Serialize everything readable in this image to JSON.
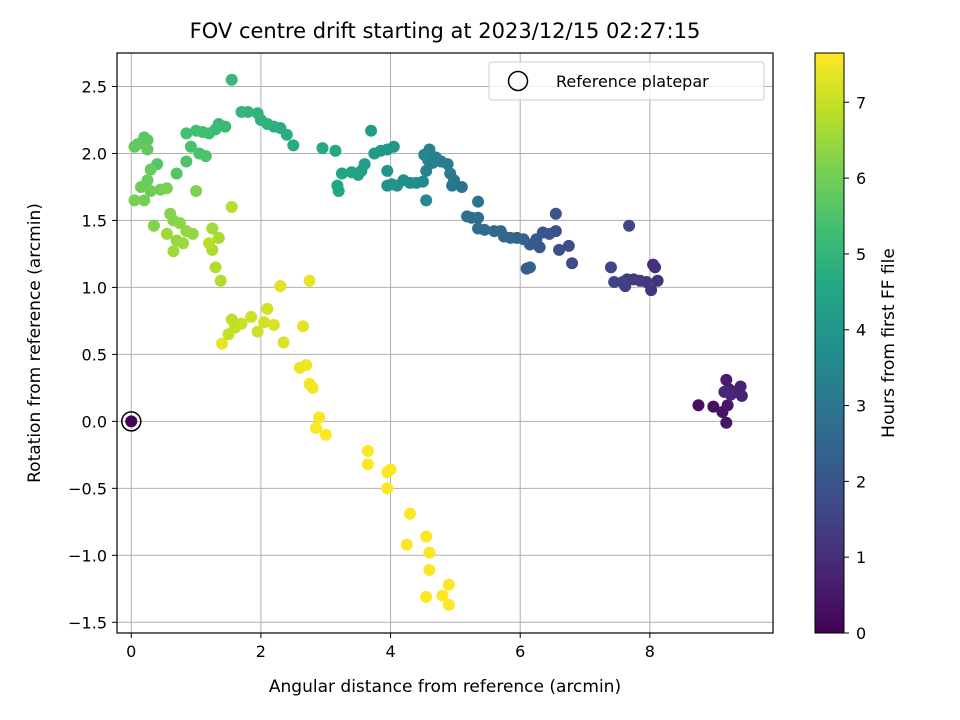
{
  "chart_data": {
    "type": "scatter",
    "title": "FOV centre drift starting at 2023/12/15 02:27:15",
    "xlabel": "Angular distance from reference (arcmin)",
    "ylabel": "Rotation from reference (arcmin)",
    "xlim": [
      -0.22,
      9.9
    ],
    "ylim": [
      -1.58,
      2.75
    ],
    "xticks": [
      0,
      2,
      4,
      6,
      8
    ],
    "xtick_labels": [
      "0",
      "2",
      "4",
      "6",
      "8"
    ],
    "yticks": [
      -1.5,
      -1.0,
      -0.5,
      0.0,
      0.5,
      1.0,
      1.5,
      2.0,
      2.5
    ],
    "ytick_labels": [
      "−1.5",
      "−1.0",
      "−0.5",
      "0.0",
      "0.5",
      "1.0",
      "1.5",
      "2.0",
      "2.5"
    ],
    "grid": true,
    "legend": {
      "position": "top-right",
      "entries": [
        "Reference platepar"
      ]
    },
    "colorbar": {
      "label": "Hours from first FF file",
      "colormap": "viridis",
      "range": [
        0,
        7.65
      ],
      "ticks": [
        0,
        1,
        2,
        3,
        4,
        5,
        6,
        7
      ],
      "tick_labels": [
        "0",
        "1",
        "2",
        "3",
        "4",
        "5",
        "6",
        "7"
      ]
    },
    "reference_point": {
      "x": 0.0,
      "y": 0.0
    },
    "points": [
      {
        "x": 0.0,
        "y": 0.0,
        "c": 0.0
      },
      {
        "x": 8.75,
        "y": 0.12,
        "c": 0.3
      },
      {
        "x": 8.98,
        "y": 0.11,
        "c": 0.35
      },
      {
        "x": 9.12,
        "y": 0.07,
        "c": 0.4
      },
      {
        "x": 9.18,
        "y": -0.01,
        "c": 0.45
      },
      {
        "x": 9.2,
        "y": 0.12,
        "c": 0.5
      },
      {
        "x": 9.22,
        "y": 0.24,
        "c": 0.55
      },
      {
        "x": 9.18,
        "y": 0.31,
        "c": 0.6
      },
      {
        "x": 9.3,
        "y": 0.22,
        "c": 0.65
      },
      {
        "x": 9.4,
        "y": 0.26,
        "c": 0.7
      },
      {
        "x": 9.42,
        "y": 0.19,
        "c": 0.75
      },
      {
        "x": 9.25,
        "y": 0.2,
        "c": 0.8
      },
      {
        "x": 9.15,
        "y": 0.22,
        "c": 0.85
      },
      {
        "x": 8.05,
        "y": 1.17,
        "c": 1.0
      },
      {
        "x": 8.08,
        "y": 1.15,
        "c": 1.05
      },
      {
        "x": 8.12,
        "y": 1.05,
        "c": 1.1
      },
      {
        "x": 8.02,
        "y": 0.98,
        "c": 1.15
      },
      {
        "x": 7.95,
        "y": 1.04,
        "c": 1.2
      },
      {
        "x": 7.85,
        "y": 1.05,
        "c": 1.25
      },
      {
        "x": 7.75,
        "y": 1.06,
        "c": 1.3
      },
      {
        "x": 7.65,
        "y": 1.06,
        "c": 1.35
      },
      {
        "x": 7.62,
        "y": 1.01,
        "c": 1.4
      },
      {
        "x": 7.58,
        "y": 1.04,
        "c": 1.45
      },
      {
        "x": 7.45,
        "y": 1.04,
        "c": 1.5
      },
      {
        "x": 7.4,
        "y": 1.15,
        "c": 1.55
      },
      {
        "x": 7.68,
        "y": 1.46,
        "c": 1.6
      },
      {
        "x": 6.8,
        "y": 1.18,
        "c": 1.75
      },
      {
        "x": 6.75,
        "y": 1.31,
        "c": 1.8
      },
      {
        "x": 6.6,
        "y": 1.28,
        "c": 1.85
      },
      {
        "x": 6.55,
        "y": 1.42,
        "c": 1.9
      },
      {
        "x": 6.55,
        "y": 1.55,
        "c": 1.95
      },
      {
        "x": 6.45,
        "y": 1.4,
        "c": 2.0
      },
      {
        "x": 6.35,
        "y": 1.41,
        "c": 2.05
      },
      {
        "x": 6.3,
        "y": 1.3,
        "c": 2.1
      },
      {
        "x": 6.25,
        "y": 1.36,
        "c": 2.15
      },
      {
        "x": 6.15,
        "y": 1.32,
        "c": 2.2
      },
      {
        "x": 6.1,
        "y": 1.14,
        "c": 2.25
      },
      {
        "x": 6.15,
        "y": 1.15,
        "c": 2.3
      },
      {
        "x": 6.05,
        "y": 1.36,
        "c": 2.35
      },
      {
        "x": 5.95,
        "y": 1.37,
        "c": 2.4
      },
      {
        "x": 5.85,
        "y": 1.37,
        "c": 2.45
      },
      {
        "x": 5.75,
        "y": 1.38,
        "c": 2.5
      },
      {
        "x": 5.7,
        "y": 1.42,
        "c": 2.55
      },
      {
        "x": 5.6,
        "y": 1.42,
        "c": 2.6
      },
      {
        "x": 5.45,
        "y": 1.43,
        "c": 2.65
      },
      {
        "x": 5.35,
        "y": 1.44,
        "c": 2.7
      },
      {
        "x": 5.35,
        "y": 1.52,
        "c": 2.75
      },
      {
        "x": 5.25,
        "y": 1.52,
        "c": 2.8
      },
      {
        "x": 5.18,
        "y": 1.53,
        "c": 2.85
      },
      {
        "x": 5.35,
        "y": 1.64,
        "c": 2.9
      },
      {
        "x": 5.1,
        "y": 1.75,
        "c": 2.95
      },
      {
        "x": 4.95,
        "y": 1.76,
        "c": 3.0
      },
      {
        "x": 4.98,
        "y": 1.8,
        "c": 3.05
      },
      {
        "x": 4.92,
        "y": 1.85,
        "c": 3.1
      },
      {
        "x": 4.88,
        "y": 1.92,
        "c": 3.15
      },
      {
        "x": 4.78,
        "y": 1.94,
        "c": 3.2
      },
      {
        "x": 4.7,
        "y": 1.97,
        "c": 3.25
      },
      {
        "x": 4.65,
        "y": 1.93,
        "c": 3.3
      },
      {
        "x": 4.58,
        "y": 1.95,
        "c": 3.35
      },
      {
        "x": 4.55,
        "y": 1.87,
        "c": 3.4
      },
      {
        "x": 4.6,
        "y": 2.03,
        "c": 3.45
      },
      {
        "x": 4.52,
        "y": 1.99,
        "c": 3.5
      },
      {
        "x": 4.5,
        "y": 1.79,
        "c": 3.55
      },
      {
        "x": 4.55,
        "y": 1.65,
        "c": 3.6
      },
      {
        "x": 4.4,
        "y": 1.78,
        "c": 3.65
      },
      {
        "x": 4.3,
        "y": 1.78,
        "c": 3.7
      },
      {
        "x": 4.2,
        "y": 1.8,
        "c": 3.75
      },
      {
        "x": 4.1,
        "y": 1.76,
        "c": 3.8
      },
      {
        "x": 4.02,
        "y": 1.77,
        "c": 3.85
      },
      {
        "x": 3.95,
        "y": 1.76,
        "c": 3.9
      },
      {
        "x": 3.95,
        "y": 1.87,
        "c": 3.95
      },
      {
        "x": 4.05,
        "y": 2.05,
        "c": 4.0
      },
      {
        "x": 3.95,
        "y": 2.03,
        "c": 4.05
      },
      {
        "x": 3.85,
        "y": 2.02,
        "c": 4.1
      },
      {
        "x": 3.75,
        "y": 2.0,
        "c": 4.15
      },
      {
        "x": 3.7,
        "y": 2.17,
        "c": 4.2
      },
      {
        "x": 3.6,
        "y": 1.92,
        "c": 4.25
      },
      {
        "x": 3.55,
        "y": 1.87,
        "c": 4.3
      },
      {
        "x": 3.5,
        "y": 1.84,
        "c": 4.35
      },
      {
        "x": 3.4,
        "y": 1.86,
        "c": 4.4
      },
      {
        "x": 3.25,
        "y": 1.85,
        "c": 4.45
      },
      {
        "x": 3.18,
        "y": 1.76,
        "c": 4.5
      },
      {
        "x": 3.2,
        "y": 1.72,
        "c": 4.55
      },
      {
        "x": 3.15,
        "y": 2.02,
        "c": 4.6
      },
      {
        "x": 2.95,
        "y": 2.04,
        "c": 4.65
      },
      {
        "x": 2.5,
        "y": 2.06,
        "c": 4.72
      },
      {
        "x": 2.4,
        "y": 2.14,
        "c": 4.76
      },
      {
        "x": 2.3,
        "y": 2.19,
        "c": 4.8
      },
      {
        "x": 2.2,
        "y": 2.2,
        "c": 4.84
      },
      {
        "x": 2.1,
        "y": 2.22,
        "c": 4.88
      },
      {
        "x": 2.0,
        "y": 2.25,
        "c": 4.92
      },
      {
        "x": 1.95,
        "y": 2.3,
        "c": 4.96
      },
      {
        "x": 1.8,
        "y": 2.31,
        "c": 5.0
      },
      {
        "x": 1.7,
        "y": 2.31,
        "c": 5.04
      },
      {
        "x": 1.55,
        "y": 2.55,
        "c": 5.08
      },
      {
        "x": 1.45,
        "y": 2.2,
        "c": 5.12
      },
      {
        "x": 1.35,
        "y": 2.22,
        "c": 5.16
      },
      {
        "x": 1.3,
        "y": 2.18,
        "c": 5.2
      },
      {
        "x": 1.2,
        "y": 2.15,
        "c": 5.24
      },
      {
        "x": 1.1,
        "y": 2.16,
        "c": 5.28
      },
      {
        "x": 1.0,
        "y": 2.17,
        "c": 5.32
      },
      {
        "x": 0.85,
        "y": 2.15,
        "c": 5.36
      },
      {
        "x": 0.92,
        "y": 2.05,
        "c": 5.4
      },
      {
        "x": 1.05,
        "y": 2.0,
        "c": 5.44
      },
      {
        "x": 1.15,
        "y": 1.98,
        "c": 5.48
      },
      {
        "x": 0.85,
        "y": 1.94,
        "c": 5.52
      },
      {
        "x": 0.7,
        "y": 1.85,
        "c": 5.56
      },
      {
        "x": 0.4,
        "y": 1.92,
        "c": 5.6
      },
      {
        "x": 0.25,
        "y": 2.1,
        "c": 5.64
      },
      {
        "x": 0.2,
        "y": 2.12,
        "c": 5.68
      },
      {
        "x": 0.1,
        "y": 2.07,
        "c": 5.72
      },
      {
        "x": 0.05,
        "y": 2.05,
        "c": 5.76
      },
      {
        "x": 0.25,
        "y": 2.03,
        "c": 5.8
      },
      {
        "x": 0.3,
        "y": 1.88,
        "c": 5.84
      },
      {
        "x": 0.25,
        "y": 1.8,
        "c": 5.88
      },
      {
        "x": 0.15,
        "y": 1.75,
        "c": 5.92
      },
      {
        "x": 0.3,
        "y": 1.72,
        "c": 5.96
      },
      {
        "x": 0.45,
        "y": 1.73,
        "c": 6.0
      },
      {
        "x": 0.2,
        "y": 1.65,
        "c": 6.04
      },
      {
        "x": 0.05,
        "y": 1.65,
        "c": 6.08
      },
      {
        "x": 0.55,
        "y": 1.74,
        "c": 6.12
      },
      {
        "x": 1.0,
        "y": 1.72,
        "c": 6.16
      },
      {
        "x": 0.35,
        "y": 1.46,
        "c": 6.2
      },
      {
        "x": 0.6,
        "y": 1.55,
        "c": 6.24
      },
      {
        "x": 0.65,
        "y": 1.5,
        "c": 6.28
      },
      {
        "x": 0.75,
        "y": 1.48,
        "c": 6.32
      },
      {
        "x": 0.85,
        "y": 1.42,
        "c": 6.36
      },
      {
        "x": 0.95,
        "y": 1.4,
        "c": 6.4
      },
      {
        "x": 0.7,
        "y": 1.35,
        "c": 6.44
      },
      {
        "x": 0.8,
        "y": 1.33,
        "c": 6.48
      },
      {
        "x": 0.55,
        "y": 1.4,
        "c": 6.52
      },
      {
        "x": 0.65,
        "y": 1.27,
        "c": 6.56
      },
      {
        "x": 1.25,
        "y": 1.44,
        "c": 6.6
      },
      {
        "x": 1.35,
        "y": 1.37,
        "c": 6.64
      },
      {
        "x": 1.25,
        "y": 1.28,
        "c": 6.68
      },
      {
        "x": 1.3,
        "y": 1.15,
        "c": 6.72
      },
      {
        "x": 1.38,
        "y": 1.05,
        "c": 6.76
      },
      {
        "x": 1.55,
        "y": 1.6,
        "c": 6.8
      },
      {
        "x": 1.2,
        "y": 1.33,
        "c": 6.84
      },
      {
        "x": 1.55,
        "y": 0.76,
        "c": 6.88
      },
      {
        "x": 1.6,
        "y": 0.7,
        "c": 6.92
      },
      {
        "x": 1.5,
        "y": 0.65,
        "c": 6.96
      },
      {
        "x": 1.7,
        "y": 0.73,
        "c": 7.0
      },
      {
        "x": 1.85,
        "y": 0.78,
        "c": 7.04
      },
      {
        "x": 1.95,
        "y": 0.67,
        "c": 7.08
      },
      {
        "x": 2.05,
        "y": 0.74,
        "c": 7.12
      },
      {
        "x": 2.1,
        "y": 0.84,
        "c": 7.16
      },
      {
        "x": 2.2,
        "y": 0.72,
        "c": 7.2
      },
      {
        "x": 2.35,
        "y": 0.59,
        "c": 7.24
      },
      {
        "x": 2.3,
        "y": 1.01,
        "c": 7.28
      },
      {
        "x": 2.65,
        "y": 0.71,
        "c": 7.32
      },
      {
        "x": 2.75,
        "y": 1.05,
        "c": 7.36
      },
      {
        "x": 1.4,
        "y": 0.58,
        "c": 7.4
      },
      {
        "x": 2.6,
        "y": 0.4,
        "c": 7.44
      },
      {
        "x": 2.7,
        "y": 0.42,
        "c": 7.48
      },
      {
        "x": 2.75,
        "y": 0.28,
        "c": 7.52
      },
      {
        "x": 2.8,
        "y": 0.25,
        "c": 7.56
      },
      {
        "x": 2.9,
        "y": 0.03,
        "c": 7.6
      },
      {
        "x": 2.85,
        "y": -0.05,
        "c": 7.62
      },
      {
        "x": 3.0,
        "y": -0.1,
        "c": 7.64
      },
      {
        "x": 3.65,
        "y": -0.22,
        "c": 7.66
      },
      {
        "x": 3.65,
        "y": -0.32,
        "c": 7.68
      },
      {
        "x": 3.95,
        "y": -0.38,
        "c": 7.7
      },
      {
        "x": 4.0,
        "y": -0.36,
        "c": 7.72
      },
      {
        "x": 3.95,
        "y": -0.5,
        "c": 7.74
      },
      {
        "x": 4.3,
        "y": -0.69,
        "c": 7.76
      },
      {
        "x": 4.25,
        "y": -0.92,
        "c": 7.78
      },
      {
        "x": 4.55,
        "y": -0.86,
        "c": 7.8
      },
      {
        "x": 4.6,
        "y": -0.98,
        "c": 7.82
      },
      {
        "x": 4.6,
        "y": -1.11,
        "c": 7.84
      },
      {
        "x": 4.55,
        "y": -1.31,
        "c": 7.86
      },
      {
        "x": 4.8,
        "y": -1.3,
        "c": 7.88
      },
      {
        "x": 4.9,
        "y": -1.37,
        "c": 7.9
      },
      {
        "x": 4.9,
        "y": -1.22,
        "c": 7.92
      }
    ]
  }
}
